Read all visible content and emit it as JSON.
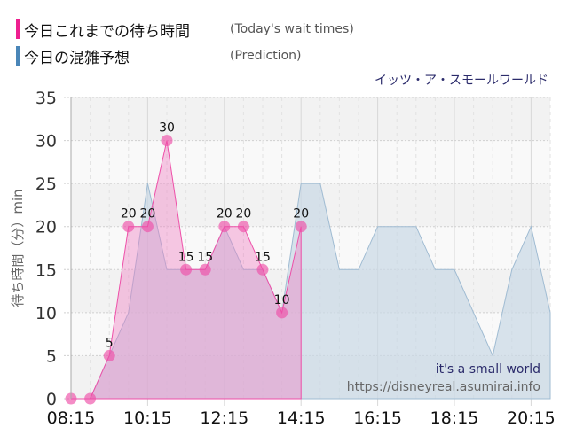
{
  "legend": {
    "items": [
      {
        "label": "今日これまでの待ち時間",
        "sub": "(Today's wait times)",
        "color": "#ee1f8f"
      },
      {
        "label": "今日の混雑予想",
        "sub": "(Prediction)",
        "color": "#4a86b8"
      }
    ]
  },
  "attraction_title": "イッツ・ア・スモールワールド",
  "credit": {
    "name": "it's a small world",
    "url": "https://disneyreal.asumirai.info"
  },
  "chart_data": {
    "type": "area",
    "title": "イッツ・ア・スモールワールド",
    "xlabel": "",
    "ylabel": "待ち時間（分）min",
    "ylim": [
      0,
      35
    ],
    "yticks": [
      0,
      5,
      10,
      15,
      20,
      25,
      30,
      35
    ],
    "xtick_labels": [
      "08:15",
      "10:15",
      "12:15",
      "14:15",
      "16:15",
      "18:15",
      "20:15"
    ],
    "grid": true,
    "legend_position": "top-left",
    "x": [
      "08:15",
      "08:45",
      "09:15",
      "09:45",
      "10:15",
      "10:45",
      "11:15",
      "11:45",
      "12:15",
      "12:45",
      "13:15",
      "13:45",
      "14:15",
      "14:45",
      "15:15",
      "15:45",
      "16:15",
      "16:45",
      "17:15",
      "17:45",
      "18:15",
      "18:45",
      "19:15",
      "19:45",
      "20:15",
      "20:45"
    ],
    "series": [
      {
        "name": "今日これまでの待ち時間 (Today's wait times)",
        "color": "#ee1f8f",
        "values": [
          0,
          0,
          5,
          20,
          20,
          30,
          15,
          15,
          20,
          20,
          15,
          10,
          20
        ]
      },
      {
        "name": "今日の混雑予想 (Prediction)",
        "color": "#4a86b8",
        "values": [
          0,
          0,
          5,
          10,
          25,
          15,
          15,
          15,
          20,
          15,
          15,
          10,
          25,
          25,
          15,
          15,
          20,
          20,
          20,
          15,
          15,
          10,
          5,
          15,
          20,
          10
        ]
      }
    ]
  }
}
